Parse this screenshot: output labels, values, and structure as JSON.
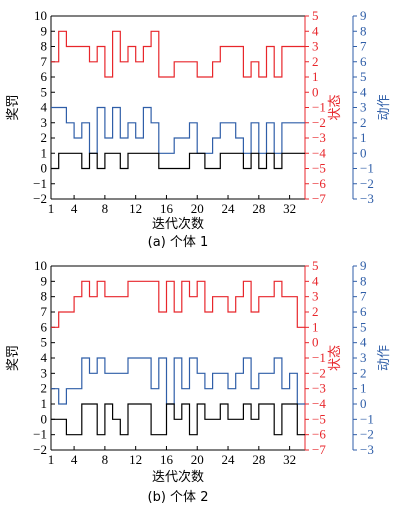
{
  "colors": {
    "reward": "#000000",
    "state": "#e8262b",
    "action": "#2f5ea8",
    "axis": "#000000"
  },
  "chart_data": [
    {
      "type": "line",
      "step": true,
      "caption": "(a) 个体 1",
      "xlabel": "迭代次数",
      "ylabel_left": "奖罚",
      "ylabel_right1": "状态",
      "ylabel_right2": "动作",
      "xlim": [
        1,
        34
      ],
      "xticks": [
        1,
        4,
        8,
        12,
        16,
        20,
        24,
        28,
        32
      ],
      "ylim_left": [
        -2,
        10
      ],
      "yticks_left": [
        -2,
        -1,
        0,
        1,
        2,
        3,
        4,
        5,
        6,
        7,
        8,
        9,
        10
      ],
      "ylim_right1": [
        -7,
        5
      ],
      "yticks_right1": [
        -7,
        -6,
        -5,
        -4,
        -3,
        -2,
        -1,
        0,
        1,
        2,
        3,
        4,
        5
      ],
      "ylim_right2": [
        -3,
        9
      ],
      "yticks_right2": [
        -3,
        -2,
        -1,
        0,
        1,
        2,
        3,
        4,
        5,
        6,
        7,
        8,
        9
      ],
      "x": [
        1,
        2,
        3,
        4,
        5,
        6,
        7,
        8,
        9,
        10,
        11,
        12,
        13,
        14,
        15,
        16,
        17,
        18,
        19,
        20,
        21,
        22,
        23,
        24,
        25,
        26,
        27,
        28,
        29,
        30,
        31,
        32,
        33
      ],
      "series": [
        {
          "axis": "state",
          "values": [
            2,
            4,
            3,
            3,
            3,
            2,
            3,
            1,
            4,
            2,
            3,
            2,
            3,
            4,
            1,
            1,
            2,
            2,
            2,
            1,
            1,
            2,
            3,
            3,
            3,
            1,
            2,
            1,
            3,
            1,
            3,
            3,
            3
          ]
        },
        {
          "axis": "action",
          "values": [
            3,
            3,
            2,
            1,
            2,
            0,
            3,
            1,
            3,
            1,
            2,
            1,
            3,
            2,
            0,
            0,
            1,
            1,
            2,
            0,
            0,
            1,
            2,
            2,
            1,
            0,
            2,
            0,
            2,
            0,
            2,
            2,
            2
          ]
        },
        {
          "axis": "reward",
          "values": [
            0,
            1,
            1,
            1,
            0,
            1,
            0,
            1,
            1,
            0,
            1,
            1,
            1,
            1,
            0,
            0,
            0,
            0,
            1,
            1,
            0,
            0,
            1,
            1,
            1,
            0,
            1,
            0,
            1,
            0,
            1,
            1,
            1
          ]
        }
      ]
    },
    {
      "type": "line",
      "step": true,
      "caption": "(b) 个体 2",
      "xlabel": "迭代次数",
      "ylabel_left": "奖罚",
      "ylabel_right1": "状态",
      "ylabel_right2": "动作",
      "xlim": [
        1,
        34
      ],
      "xticks": [
        1,
        4,
        8,
        12,
        16,
        20,
        24,
        28,
        32
      ],
      "ylim_left": [
        -2,
        10
      ],
      "yticks_left": [
        -2,
        -1,
        0,
        1,
        2,
        3,
        4,
        5,
        6,
        7,
        8,
        9,
        10
      ],
      "ylim_right1": [
        -7,
        5
      ],
      "yticks_right1": [
        -7,
        -6,
        -5,
        -4,
        -3,
        -2,
        -1,
        0,
        1,
        2,
        3,
        4,
        5
      ],
      "ylim_right2": [
        -3,
        9
      ],
      "yticks_right2": [
        -3,
        -2,
        -1,
        0,
        1,
        2,
        3,
        4,
        5,
        6,
        7,
        8,
        9
      ],
      "x": [
        1,
        2,
        3,
        4,
        5,
        6,
        7,
        8,
        9,
        10,
        11,
        12,
        13,
        14,
        15,
        16,
        17,
        18,
        19,
        20,
        21,
        22,
        23,
        24,
        25,
        26,
        27,
        28,
        29,
        30,
        31,
        32,
        33
      ],
      "series": [
        {
          "axis": "state",
          "values": [
            1,
            2,
            2,
            3,
            4,
            3,
            4,
            3,
            3,
            3,
            4,
            4,
            4,
            4,
            2,
            4,
            2,
            4,
            3,
            4,
            2,
            3,
            3,
            2,
            3,
            4,
            2,
            3,
            3,
            4,
            3,
            3,
            1
          ]
        },
        {
          "axis": "action",
          "values": [
            1,
            0,
            1,
            1,
            3,
            2,
            3,
            2,
            2,
            2,
            3,
            3,
            3,
            1,
            3,
            0,
            3,
            1,
            3,
            2,
            1,
            2,
            2,
            1,
            2,
            3,
            1,
            2,
            2,
            3,
            1,
            2,
            0
          ]
        },
        {
          "axis": "reward",
          "values": [
            0,
            0,
            -1,
            -1,
            1,
            1,
            -1,
            1,
            0,
            -1,
            1,
            1,
            1,
            -1,
            -1,
            1,
            0,
            1,
            -1,
            1,
            0,
            0,
            1,
            0,
            0,
            1,
            0,
            1,
            1,
            -1,
            1,
            1,
            -1
          ]
        }
      ]
    }
  ]
}
